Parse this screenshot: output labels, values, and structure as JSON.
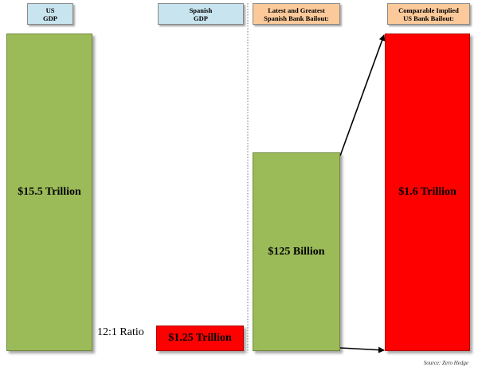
{
  "headers": {
    "us_gdp": [
      "US",
      "GDP"
    ],
    "spanish_gdp": [
      "Spanish",
      "GDP"
    ],
    "spanish_bailout": [
      "Latest and Greatest",
      "Spanish Bank Bailout:"
    ],
    "us_bailout": [
      "Comparable Implied",
      "US Bank Bailout:"
    ]
  },
  "ratio_label": "12:1 Ratio",
  "source": "Source: Zero Hedge",
  "colors": {
    "green": "#9bbb59",
    "red": "#ff0000",
    "header_blue": "#c8e4ee",
    "header_peach": "#fbc99a"
  },
  "chart_data": {
    "type": "bar",
    "title": "",
    "categories": [
      "US GDP",
      "Spanish GDP",
      "Latest and Greatest Spanish Bank Bailout:",
      "Comparable Implied US Bank Bailout:"
    ],
    "series": [
      {
        "values": [
          15.5,
          1.25,
          0.125,
          1.6
        ],
        "labels": [
          "$15.5 Trillion",
          "$1.25 Trillion",
          "$125 Billion",
          "$1.6 Trillion"
        ]
      }
    ],
    "unit": "trillion USD",
    "panel_groups": [
      [
        0,
        1
      ],
      [
        2,
        3
      ]
    ],
    "panel_scales": [
      "shared",
      "independent"
    ],
    "colors": [
      "#9bbb59",
      "#ff0000",
      "#9bbb59",
      "#ff0000"
    ],
    "annotations": [
      "12:1 Ratio"
    ]
  }
}
